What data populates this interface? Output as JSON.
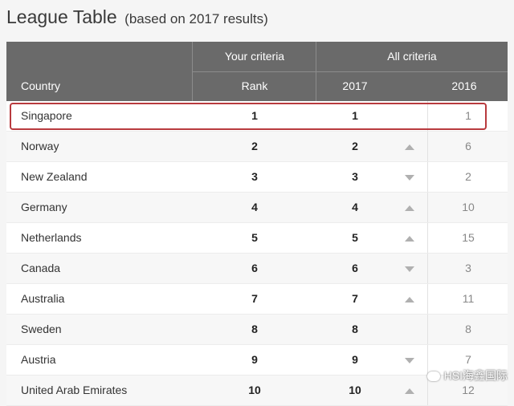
{
  "header": {
    "title": "League Table",
    "subtitle": "(based on 2017 results)"
  },
  "table": {
    "columns": {
      "country": "Country",
      "your_criteria": "Your criteria",
      "all_criteria": "All criteria",
      "rank": "Rank",
      "year_2017": "2017",
      "year_2016": "2016"
    },
    "rows": [
      {
        "country": "Singapore",
        "rank": "1",
        "r2017": "1",
        "trend": "none",
        "r2016": "1",
        "highlighted": true
      },
      {
        "country": "Norway",
        "rank": "2",
        "r2017": "2",
        "trend": "up",
        "r2016": "6"
      },
      {
        "country": "New Zealand",
        "rank": "3",
        "r2017": "3",
        "trend": "down",
        "r2016": "2"
      },
      {
        "country": "Germany",
        "rank": "4",
        "r2017": "4",
        "trend": "up",
        "r2016": "10"
      },
      {
        "country": "Netherlands",
        "rank": "5",
        "r2017": "5",
        "trend": "up",
        "r2016": "15"
      },
      {
        "country": "Canada",
        "rank": "6",
        "r2017": "6",
        "trend": "down",
        "r2016": "3"
      },
      {
        "country": "Australia",
        "rank": "7",
        "r2017": "7",
        "trend": "up",
        "r2016": "11"
      },
      {
        "country": "Sweden",
        "rank": "8",
        "r2017": "8",
        "trend": "none",
        "r2016": "8"
      },
      {
        "country": "Austria",
        "rank": "9",
        "r2017": "9",
        "trend": "down",
        "r2016": "7"
      },
      {
        "country": "United Arab Emirates",
        "rank": "10",
        "r2017": "10",
        "trend": "up",
        "r2016": "12"
      }
    ],
    "highlight_color": "#b83a3e",
    "header_color": "#6a6a6a"
  },
  "watermark": {
    "icon": "wechat-icon",
    "text": "HSI海鑫国际"
  }
}
